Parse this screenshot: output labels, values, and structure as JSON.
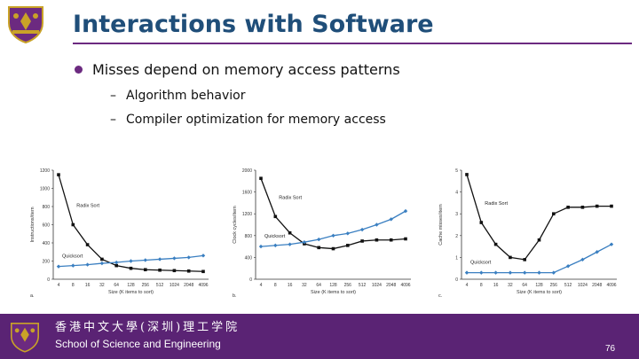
{
  "slide": {
    "title": "Interactions with Software",
    "bullet": "Misses depend on memory access patterns",
    "subbullets": [
      "Algorithm behavior",
      "Compiler optimization for memory access"
    ],
    "dash": "–",
    "page_number": "76"
  },
  "footer": {
    "chinese_name": "香港中文大學(深圳)理工学院",
    "english_name": "School of Science and Engineering"
  },
  "colors": {
    "title": "#1f4e79",
    "accent": "#6c2a80",
    "footer": "#5a2374",
    "radix": "#111111",
    "quick": "#3a7fc1"
  },
  "chart_data": [
    {
      "type": "line",
      "panel_label": "a.",
      "xlabel": "Size (K items to sort)",
      "ylabel": "Instructions/item",
      "ylim": [
        0,
        1200
      ],
      "yticks": [
        "0",
        "200",
        "400",
        "600",
        "800",
        "1000",
        "1200"
      ],
      "categories": [
        "4",
        "8",
        "16",
        "32",
        "64",
        "128",
        "256",
        "512",
        "1024",
        "2048",
        "4096"
      ],
      "series": [
        {
          "name": "Radix Sort",
          "values": [
            1150,
            600,
            380,
            220,
            150,
            120,
            105,
            100,
            95,
            90,
            85
          ]
        },
        {
          "name": "Quicksort",
          "values": [
            140,
            150,
            160,
            175,
            185,
            200,
            210,
            220,
            230,
            240,
            260
          ]
        }
      ]
    },
    {
      "type": "line",
      "panel_label": "b.",
      "xlabel": "Size (K items to sort)",
      "ylabel": "Clock cycles/item",
      "ylim": [
        0,
        2000
      ],
      "yticks": [
        "0",
        "400",
        "800",
        "1200",
        "1600",
        "2000"
      ],
      "categories": [
        "4",
        "8",
        "16",
        "32",
        "64",
        "128",
        "256",
        "512",
        "1024",
        "2048",
        "4096"
      ],
      "series": [
        {
          "name": "Radix Sort",
          "values": [
            1850,
            1150,
            850,
            650,
            580,
            560,
            620,
            700,
            720,
            720,
            740
          ]
        },
        {
          "name": "Quicksort",
          "values": [
            600,
            620,
            640,
            680,
            730,
            800,
            840,
            910,
            1000,
            1100,
            1250
          ]
        }
      ]
    },
    {
      "type": "line",
      "panel_label": "c.",
      "xlabel": "Size (K items to sort)",
      "ylabel": "Cache misses/item",
      "ylim": [
        0,
        5
      ],
      "yticks": [
        "0",
        "1",
        "2",
        "3",
        "4",
        "5"
      ],
      "categories": [
        "4",
        "8",
        "16",
        "32",
        "64",
        "128",
        "256",
        "512",
        "1024",
        "2048",
        "4096"
      ],
      "series": [
        {
          "name": "Radix Sort",
          "values": [
            4.8,
            2.6,
            1.6,
            1.0,
            0.9,
            1.8,
            3.0,
            3.3,
            3.3,
            3.35,
            3.35
          ]
        },
        {
          "name": "Quicksort",
          "values": [
            0.3,
            0.3,
            0.3,
            0.3,
            0.3,
            0.3,
            0.3,
            0.6,
            0.9,
            1.25,
            1.6
          ]
        }
      ]
    }
  ]
}
